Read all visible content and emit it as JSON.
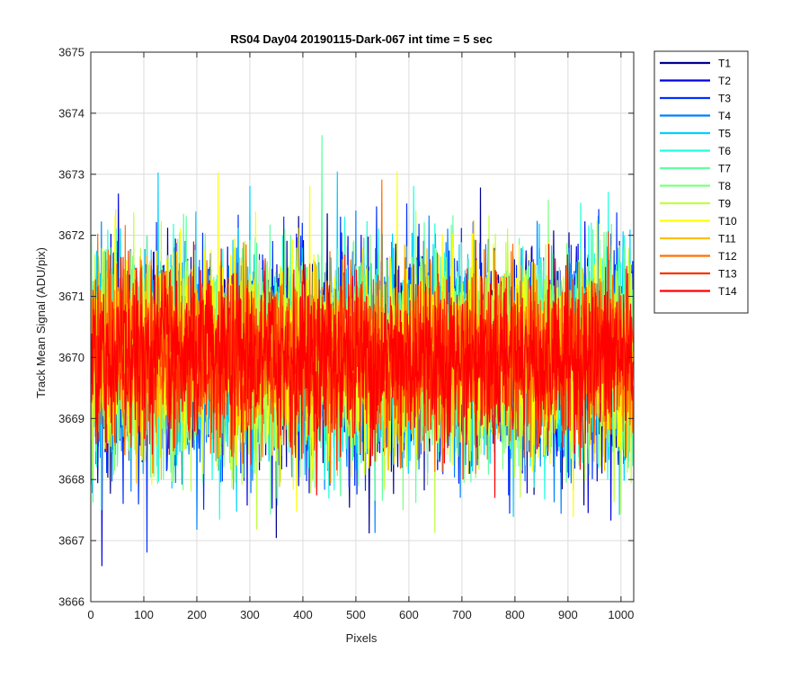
{
  "chart_data": {
    "type": "line",
    "title": "RS04 Day04 20190115-Dark-067 int time = 5 sec",
    "xlabel": "Pixels",
    "ylabel": "Track Mean Signal (ADU/pix)",
    "xlim": [
      0,
      1024
    ],
    "ylim": [
      3666,
      3675
    ],
    "xticks": [
      "0",
      "100",
      "200",
      "300",
      "400",
      "500",
      "600",
      "700",
      "800",
      "900",
      "1000"
    ],
    "yticks": [
      "3666",
      "3667",
      "3668",
      "3669",
      "3670",
      "3671",
      "3672",
      "3673",
      "3674",
      "3675"
    ],
    "grid": true,
    "legend_position": "outside top-right",
    "noise": {
      "mean": 3670.0,
      "std": 0.85,
      "n_points": 1024,
      "note_spikes_min": 3666.1,
      "note_spikes_max": 3674.2
    },
    "series": [
      {
        "name": "T1",
        "color": "#00008F"
      },
      {
        "name": "T2",
        "color": "#0000DF"
      },
      {
        "name": "T3",
        "color": "#0030FF"
      },
      {
        "name": "T4",
        "color": "#0080FF"
      },
      {
        "name": "T5",
        "color": "#00CFFF"
      },
      {
        "name": "T6",
        "color": "#20FFDF"
      },
      {
        "name": "T7",
        "color": "#60FFA0"
      },
      {
        "name": "T8",
        "color": "#80FF80"
      },
      {
        "name": "T9",
        "color": "#C0FF40"
      },
      {
        "name": "T10",
        "color": "#FFFF00"
      },
      {
        "name": "T11",
        "color": "#FFBF00"
      },
      {
        "name": "T12",
        "color": "#FF7000"
      },
      {
        "name": "T13",
        "color": "#FF3000"
      },
      {
        "name": "T14",
        "color": "#FF0000"
      }
    ]
  }
}
